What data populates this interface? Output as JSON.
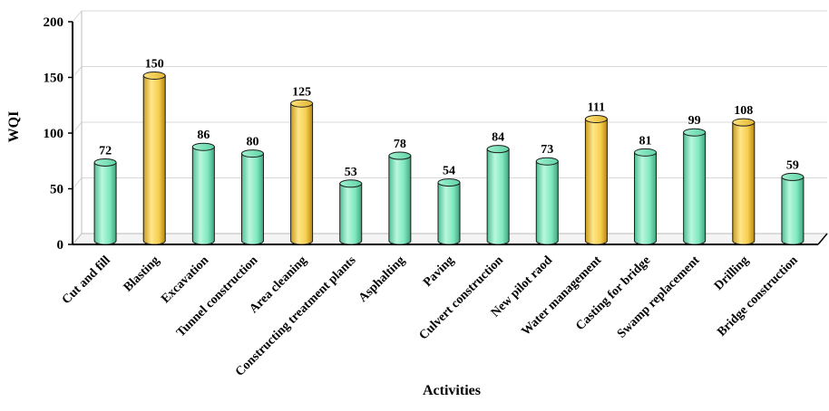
{
  "chart_data": {
    "type": "bar",
    "title": "",
    "xlabel": "Activities",
    "ylabel": "WQI",
    "ylim": [
      0,
      200
    ],
    "yticks": [
      0,
      50,
      100,
      150,
      200
    ],
    "grid": true,
    "legend": "none",
    "categories": [
      "Cut and fill",
      "Blasting",
      "Excavation",
      "Tunnel construction",
      "Area cleaning",
      "Constructing treatment plants",
      "Asphalting",
      "Paving",
      "Culvert construction",
      "New pilot raod",
      "Water management",
      "Casting for bridge",
      "Swamp replacement",
      "Drilling",
      "Bridge construction"
    ],
    "values": [
      72,
      150,
      86,
      80,
      125,
      53,
      78,
      54,
      84,
      73,
      111,
      81,
      99,
      108,
      59
    ],
    "highlighted": [
      "Blasting",
      "Area cleaning",
      "Water management",
      "Drilling"
    ],
    "colors": {
      "normal": "#7fe8bf",
      "highlight": "#f6cf4f",
      "outline": "#1a1a1a",
      "grid": "#d9d9d9"
    }
  }
}
